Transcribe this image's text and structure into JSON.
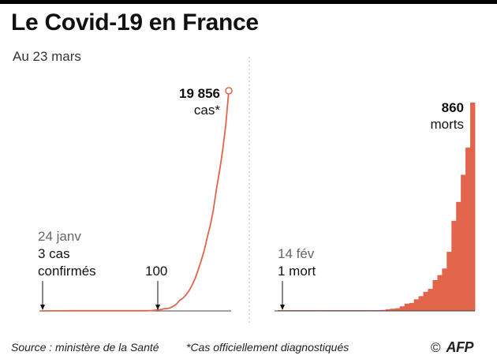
{
  "header": {
    "title": "Le Covid-19 en France",
    "subtitle": "Au 23 mars"
  },
  "colors": {
    "accent": "#E0654A",
    "axis": "#444444",
    "divider": "#b5b5b5"
  },
  "chart_data": [
    {
      "type": "line",
      "series": [
        {
          "name": "",
          "values": [
            3,
            3,
            4,
            5,
            6,
            6,
            6,
            6,
            6,
            6,
            11,
            11,
            12,
            12,
            12,
            12,
            12,
            12,
            12,
            12,
            12,
            12,
            12,
            12,
            12,
            12,
            12,
            12,
            12,
            12,
            12,
            12,
            12,
            12,
            12,
            18,
            38,
            57,
            100,
            130,
            191,
            212,
            285,
            423,
            613,
            949,
            1126,
            1412,
            1784,
            2281,
            2876,
            3661,
            4499,
            5423,
            6633,
            7730,
            9134,
            10995,
            12612,
            14459,
            16689,
            19856
          ]
        }
      ],
      "annotations": {
        "start": {
          "date": "24 janv",
          "line1": "3 cas",
          "line2": "confirmés"
        },
        "milestone": "100",
        "end": {
          "value": "19 856",
          "label": "cas*"
        }
      },
      "ylim": [
        0,
        19856
      ]
    },
    {
      "type": "bar",
      "series": [
        {
          "name": "",
          "values": [
            1,
            1,
            1,
            1,
            1,
            1,
            1,
            1,
            1,
            1,
            1,
            1,
            1,
            1,
            1,
            1,
            1,
            1,
            2,
            2,
            2,
            3,
            4,
            7,
            9,
            11,
            19,
            30,
            33,
            48,
            61,
            79,
            91,
            127,
            148,
            175,
            244,
            372,
            450,
            562,
            674,
            860
          ]
        }
      ],
      "annotations": {
        "start": {
          "date": "14 fév",
          "line1": "1 mort"
        },
        "end": {
          "value": "860",
          "label": "morts"
        }
      },
      "ylim": [
        0,
        860
      ]
    }
  ],
  "footer": {
    "source": "Source : ministère de la Santé",
    "note": "*Cas officiellement diagnostiqués",
    "copyright": "©",
    "logo": "AFP"
  }
}
